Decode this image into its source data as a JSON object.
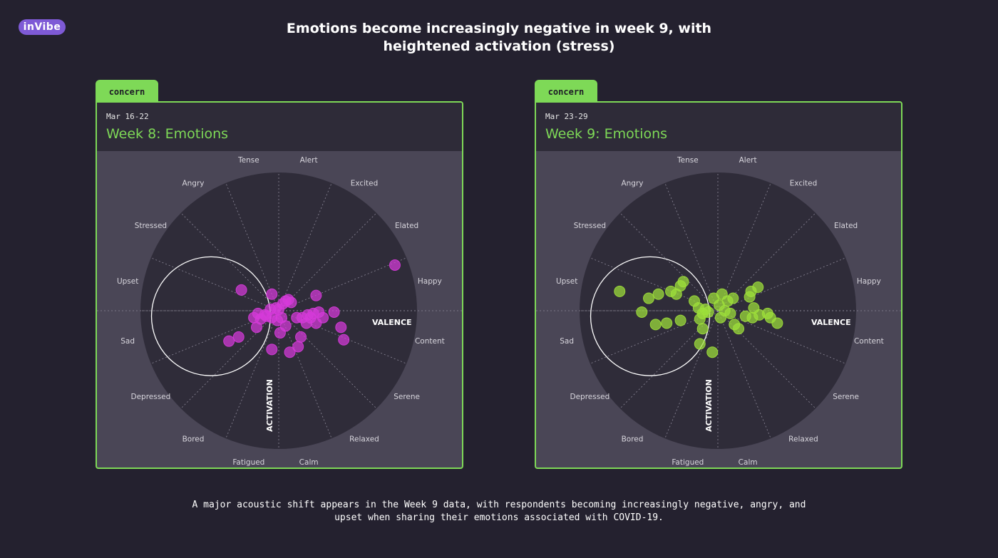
{
  "logo": {
    "text": "inVibe"
  },
  "title": "Emotions become increasingly negative in week 9, with heightened activation (stress)",
  "footnote": "A major acoustic shift appears in the Week 9 data, with respondents becoming increasingly negative, angry, and upset when sharing their emotions associated with COVID-19.",
  "colors": {
    "background": "#24212f",
    "accent": "#7ed957",
    "panel": "#4a4656",
    "wheel": "#2f2c39",
    "week8_points": "#d63ad9",
    "week9_points": "#9ee03a"
  },
  "panels": [
    {
      "tab": "concern",
      "date": "Mar 16-22",
      "title": "Week 8: Emotions"
    },
    {
      "tab": "concern",
      "date": "Mar 23-29",
      "title": "Week 9: Emotions"
    }
  ],
  "chart_data": [
    {
      "type": "scatter",
      "title": "Week 8: Emotions",
      "subtitle": "Mar 16-22",
      "xlabel": "VALENCE",
      "ylabel": "ACTIVATION",
      "xlim": [
        -1,
        1
      ],
      "ylim": [
        -1,
        1
      ],
      "grid": true,
      "sector_labels": [
        "Alert",
        "Excited",
        "Elated",
        "Happy",
        "Content",
        "Serene",
        "Relaxed",
        "Calm",
        "Fatigued",
        "Bored",
        "Depressed",
        "Sad",
        "Upset",
        "Stressed",
        "Angry",
        "Tense"
      ],
      "highlight_circle": {
        "center": [
          -0.49,
          -0.04
        ],
        "radius": 0.43
      },
      "point_color": "#d63ad9",
      "points": [
        [
          0.84,
          0.33
        ],
        [
          0.27,
          0.11
        ],
        [
          -0.27,
          0.15
        ],
        [
          -0.05,
          0.12
        ],
        [
          0.05,
          0.07
        ],
        [
          0.07,
          0.08
        ],
        [
          0.03,
          0.05
        ],
        [
          0.09,
          0.06
        ],
        [
          -0.02,
          0.02
        ],
        [
          0.0,
          0.01
        ],
        [
          -0.06,
          0.01
        ],
        [
          -0.1,
          -0.03
        ],
        [
          -0.15,
          -0.02
        ],
        [
          -0.18,
          -0.05
        ],
        [
          -0.13,
          -0.06
        ],
        [
          -0.09,
          -0.04
        ],
        [
          -0.05,
          -0.05
        ],
        [
          -0.01,
          -0.07
        ],
        [
          0.02,
          -0.05
        ],
        [
          -0.16,
          -0.12
        ],
        [
          0.05,
          -0.11
        ],
        [
          0.13,
          -0.05
        ],
        [
          0.17,
          -0.05
        ],
        [
          0.21,
          -0.03
        ],
        [
          0.25,
          -0.02
        ],
        [
          0.29,
          -0.01
        ],
        [
          0.32,
          -0.05
        ],
        [
          0.27,
          -0.09
        ],
        [
          0.4,
          -0.01
        ],
        [
          0.45,
          -0.12
        ],
        [
          0.47,
          -0.21
        ],
        [
          0.16,
          -0.19
        ],
        [
          0.14,
          -0.26
        ],
        [
          0.08,
          -0.3
        ],
        [
          -0.05,
          -0.28
        ],
        [
          0.01,
          -0.16
        ],
        [
          -0.29,
          -0.19
        ],
        [
          -0.36,
          -0.22
        ],
        [
          0.2,
          -0.09
        ],
        [
          0.23,
          -0.05
        ]
      ]
    },
    {
      "type": "scatter",
      "title": "Week 9: Emotions",
      "subtitle": "Mar 23-29",
      "xlabel": "VALENCE",
      "ylabel": "ACTIVATION",
      "xlim": [
        -1,
        1
      ],
      "ylim": [
        -1,
        1
      ],
      "grid": true,
      "sector_labels": [
        "Alert",
        "Excited",
        "Elated",
        "Happy",
        "Content",
        "Serene",
        "Relaxed",
        "Calm",
        "Fatigued",
        "Bored",
        "Depressed",
        "Sad",
        "Upset",
        "Stressed",
        "Angry",
        "Tense"
      ],
      "highlight_circle": {
        "center": [
          -0.49,
          -0.04
        ],
        "radius": 0.43
      },
      "point_color": "#9ee03a",
      "points": [
        [
          -0.71,
          0.14
        ],
        [
          -0.5,
          0.09
        ],
        [
          -0.43,
          0.12
        ],
        [
          -0.34,
          0.14
        ],
        [
          -0.27,
          0.18
        ],
        [
          -0.25,
          0.21
        ],
        [
          -0.3,
          0.12
        ],
        [
          -0.17,
          0.07
        ],
        [
          -0.14,
          0.02
        ],
        [
          -0.11,
          -0.02
        ],
        [
          -0.13,
          -0.06
        ],
        [
          -0.07,
          -0.01
        ],
        [
          -0.09,
          0.01
        ],
        [
          -0.55,
          -0.01
        ],
        [
          -0.37,
          -0.09
        ],
        [
          -0.45,
          -0.1
        ],
        [
          -0.27,
          -0.07
        ],
        [
          -0.11,
          -0.13
        ],
        [
          -0.13,
          -0.24
        ],
        [
          -0.04,
          -0.3
        ],
        [
          0.03,
          0.12
        ],
        [
          0.07,
          0.07
        ],
        [
          0.11,
          0.09
        ],
        [
          0.05,
          0.0
        ],
        [
          0.09,
          -0.02
        ],
        [
          0.02,
          -0.05
        ],
        [
          0.12,
          -0.1
        ],
        [
          0.15,
          -0.13
        ],
        [
          0.26,
          0.02
        ],
        [
          0.23,
          0.1
        ],
        [
          0.29,
          0.17
        ],
        [
          0.24,
          0.14
        ],
        [
          0.2,
          -0.04
        ],
        [
          0.25,
          -0.05
        ],
        [
          0.3,
          -0.03
        ],
        [
          0.36,
          -0.02
        ],
        [
          0.38,
          -0.05
        ],
        [
          0.43,
          -0.09
        ],
        [
          -0.03,
          0.09
        ],
        [
          0.01,
          0.04
        ]
      ]
    }
  ]
}
